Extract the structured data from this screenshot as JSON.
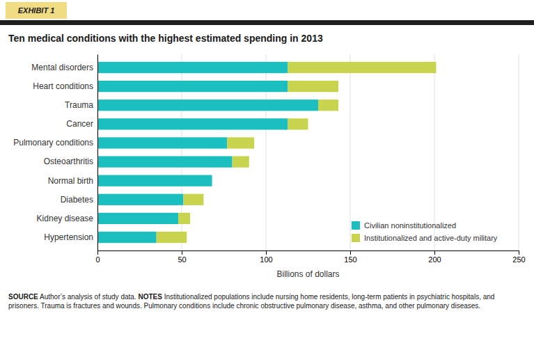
{
  "chart_data": {
    "type": "bar",
    "orientation": "horizontal",
    "stacked": true,
    "title": "Ten medical conditions with the highest estimated spending in 2013",
    "xlabel": "Billions of dollars",
    "categories": [
      "Mental disorders",
      "Heart conditions",
      "Trauma",
      "Cancer",
      "Pulmonary conditions",
      "Osteoarthritis",
      "Normal birth",
      "Diabetes",
      "Kidney disease",
      "Hypertension"
    ],
    "series": [
      {
        "name": "Civilian noninstitutionalized",
        "color": "#1bbfbf",
        "values": [
          113,
          113,
          131,
          113,
          77,
          80,
          68,
          51,
          48,
          35
        ]
      },
      {
        "name": "Institutionalized and active-duty military",
        "color": "#c8d44e",
        "values": [
          88,
          30,
          12,
          12,
          16,
          10,
          0,
          12,
          7,
          18
        ]
      }
    ],
    "xlim": [
      0,
      250
    ],
    "xticks": [
      0,
      50,
      100,
      150,
      200,
      250
    ],
    "grid": true,
    "legend": "lower right",
    "annotations": [
      "EXHIBIT 1",
      "SOURCE",
      "Author’s analysis of study data.",
      "NOTES",
      "Institutionalized populations include nursing home residents, long-term patients in psychiatric hospitals, and prisoners. Trauma is fractures and wounds. Pulmonary conditions include chronic obstructive pulmonary disease, asthma, and other pulmonary diseases."
    ]
  }
}
